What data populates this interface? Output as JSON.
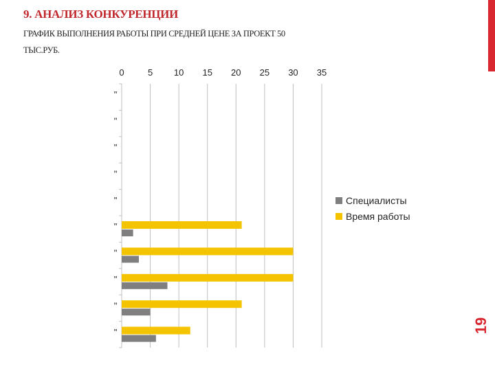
{
  "slide": {
    "title": "9. АНАЛИЗ КОНКУРЕНЦИИ",
    "subtitle": "ГРАФИК ВЫПОЛНЕНИЯ РАБОТЫ ПРИ СРЕДНЕЙ ЦЕНЕ ЗА ПРОЕКТ 50 ТЫС.РУБ.",
    "page_number": "19",
    "accent_color": "#d8272e"
  },
  "chart_data": {
    "type": "bar",
    "orientation": "horizontal",
    "categories": [
      "\"",
      "\"",
      "\"",
      "\"",
      "\"",
      "\"",
      "\"",
      "\"",
      "\"",
      "\""
    ],
    "series": [
      {
        "name": "Специалисты",
        "color": "#7f7f7f",
        "values": [
          null,
          null,
          null,
          null,
          null,
          2,
          3,
          8,
          5,
          6
        ]
      },
      {
        "name": "Время работы",
        "color": "#f5c400",
        "values": [
          null,
          null,
          null,
          null,
          null,
          21,
          30,
          30,
          21,
          12
        ]
      }
    ],
    "xlim": [
      0,
      35
    ],
    "xticks": [
      0,
      5,
      10,
      15,
      20,
      25,
      30,
      35
    ],
    "x_axis_position": "top",
    "grid": "vertical",
    "legend": "right"
  }
}
